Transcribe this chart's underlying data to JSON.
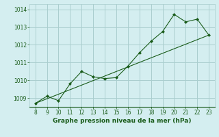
{
  "x": [
    8,
    9,
    10,
    11,
    12,
    13,
    14,
    15,
    16,
    17,
    18,
    19,
    20,
    21,
    22,
    23
  ],
  "y": [
    1008.7,
    1009.1,
    1008.85,
    1009.8,
    1010.5,
    1010.2,
    1010.1,
    1010.15,
    1010.8,
    1011.55,
    1012.2,
    1012.75,
    1013.72,
    1013.3,
    1013.45,
    1012.55
  ],
  "trend_x": [
    8,
    23
  ],
  "trend_y": [
    1008.7,
    1012.55
  ],
  "line_color": "#1a5c1a",
  "marker_color": "#1a5c1a",
  "bg_color": "#d4eef0",
  "grid_color": "#aacece",
  "xlabel": "Graphe pression niveau de la mer (hPa)",
  "xlabel_color": "#1a5c1a",
  "xlim": [
    7.5,
    23.5
  ],
  "ylim": [
    1008.5,
    1014.3
  ],
  "yticks": [
    1009,
    1010,
    1011,
    1012,
    1013,
    1014
  ],
  "xticks": [
    8,
    9,
    10,
    11,
    12,
    13,
    14,
    15,
    16,
    17,
    18,
    19,
    20,
    21,
    22,
    23
  ]
}
